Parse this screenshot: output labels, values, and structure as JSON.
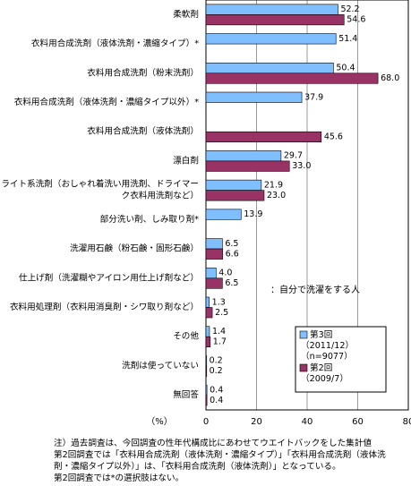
{
  "chart_data": {
    "type": "bar",
    "orientation": "horizontal",
    "categories": [
      [
        "柔軟剤"
      ],
      [
        "衣料用合成洗剤（液体洗剤・濃縮タイプ）*"
      ],
      [
        "衣料用合成洗剤（粉末洗剤）"
      ],
      [
        "衣料用合成洗剤（液体洗剤・濃縮タイプ以外）*"
      ],
      [
        "衣料用合成洗剤（液体洗剤）"
      ],
      [
        "漂白剤"
      ],
      [
        "ライト系洗剤（おしゃれ着洗い用洗剤、ドライマー",
        "ク衣料用洗剤など）"
      ],
      [
        "部分洗い剤、しみ取り剤*"
      ],
      [
        "洗濯用石鹸（粉石鹸・固形石鹸）"
      ],
      [
        "仕上げ剤（洗濯糊やアイロン用仕上げ剤など）"
      ],
      [
        "衣料用処理剤（衣料用消臭剤・シワ取り剤など）"
      ],
      [
        "その他"
      ],
      [
        "洗剤は使っていない"
      ],
      [
        "無回答"
      ]
    ],
    "series": [
      {
        "name": "第3回（2011/12）（n=9077）",
        "legend_lines": [
          "第3回",
          "（2011/12）",
          "（n=9077）"
        ],
        "color": "#7fbfff",
        "values": [
          52.2,
          51.4,
          50.4,
          37.9,
          null,
          29.7,
          21.9,
          13.9,
          6.5,
          4.0,
          1.3,
          1.4,
          0.2,
          0.4
        ]
      },
      {
        "name": "第2回（2009/7）",
        "legend_lines": [
          "第2回",
          "（2009/7）"
        ],
        "color": "#993366",
        "values": [
          54.6,
          null,
          68.0,
          null,
          45.6,
          33.0,
          23.0,
          null,
          6.6,
          6.5,
          2.5,
          1.7,
          0.2,
          0.4
        ]
      }
    ],
    "value_labels": [
      [
        "52.2",
        "54.6"
      ],
      [
        "51.4",
        null
      ],
      [
        "50.4",
        "68.0"
      ],
      [
        "37.9",
        null
      ],
      [
        null,
        "45.6"
      ],
      [
        "29.7",
        "33.0"
      ],
      [
        "21.9",
        "23.0"
      ],
      [
        "13.9",
        null
      ],
      [
        "6.5",
        "6.6"
      ],
      [
        "4.0",
        "6.5"
      ],
      [
        "1.3",
        "2.5"
      ],
      [
        "1.4",
        "1.7"
      ],
      [
        "0.2",
        "0.2"
      ],
      [
        "0.4",
        "0.4"
      ]
    ],
    "xlim": [
      0,
      80
    ],
    "xticks": [
      "0",
      "20",
      "40",
      "60",
      "80"
    ],
    "xlabel": "（%）",
    "annotation": "：自分で洗濯をする人",
    "grid": true,
    "legend_position": "bottom-right"
  },
  "notes": [
    "注）過去調査は、今回調査の性年代構成比にあわせてウエイトバックをした集計値",
    "第2回調査では「衣料用合成洗剤（液体洗剤・濃縮タイプ）」「衣料用合成洗剤（液体洗",
    "剤・濃縮タイプ以外）」は、「衣料用合成洗剤（液体洗剤）」となっている。",
    "第2回調査では*の選択肢はない。"
  ]
}
